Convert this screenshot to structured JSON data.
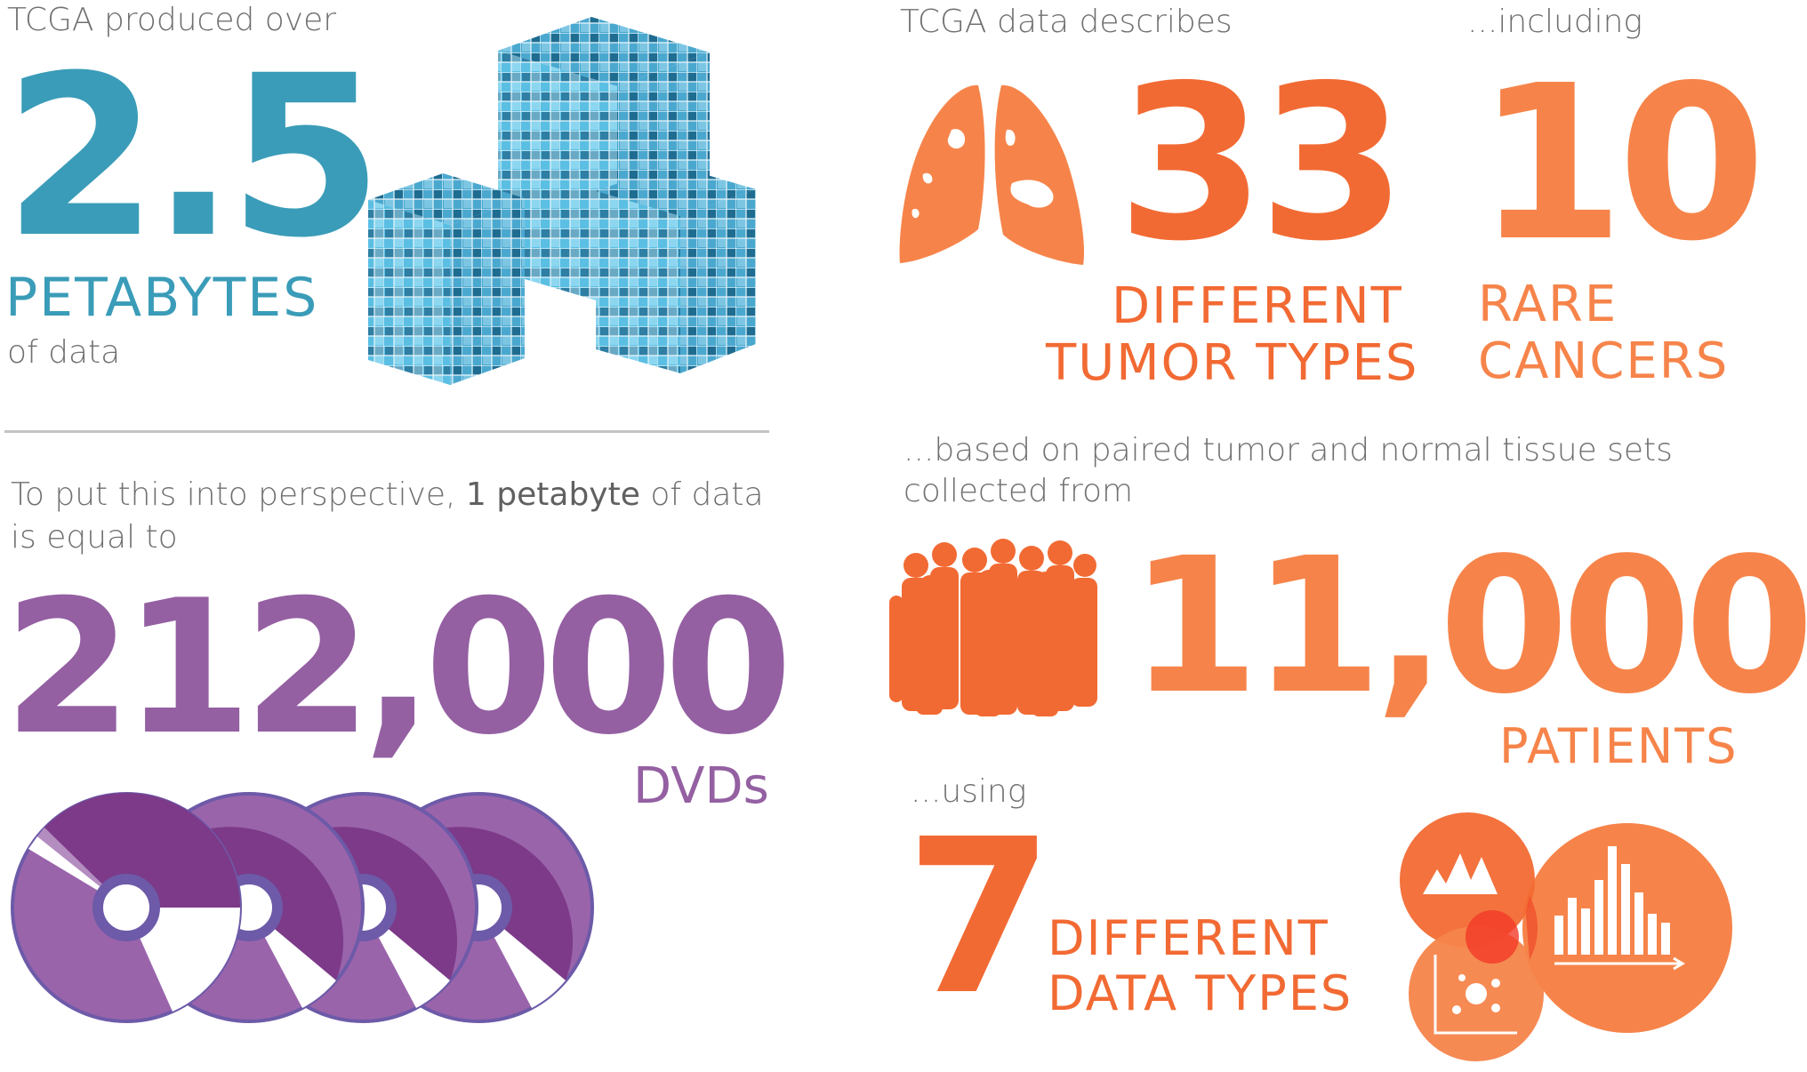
{
  "storage": {
    "intro": "TCGA produced over",
    "value": "2.5",
    "unit": "PETABYTES",
    "suffix": "of data"
  },
  "perspective": {
    "text_before": "To put this into perspective, ",
    "text_bold": "1 petabyte",
    "text_after": " of data",
    "line2": "is equal to",
    "value": "212,000",
    "unit": "DVDs"
  },
  "tumors": {
    "intro": "TCGA data describes",
    "value": "33",
    "label_line1": "DIFFERENT",
    "label_line2": "TUMOR TYPES"
  },
  "rare": {
    "intro": "...including",
    "value": "10",
    "label_line1": "RARE",
    "label_line2": "CANCERS"
  },
  "patients": {
    "intro_line1": "...based on paired tumor and normal tissue sets",
    "intro_line2": "collected from",
    "value": "11,000",
    "unit": "PATIENTS"
  },
  "datatypes": {
    "intro": "...using",
    "value": "7",
    "label_line1": "DIFFERENT",
    "label_line2": "DATA TYPES"
  },
  "colors": {
    "teal": "#3a9cb8",
    "purple": "#9460a2",
    "orange": "#f26a33",
    "light_orange": "#f6844a"
  },
  "icons": [
    "data-cubes-icon",
    "lungs-icon",
    "crowd-icon",
    "dvd-discs-icon",
    "data-types-circles-icon"
  ]
}
